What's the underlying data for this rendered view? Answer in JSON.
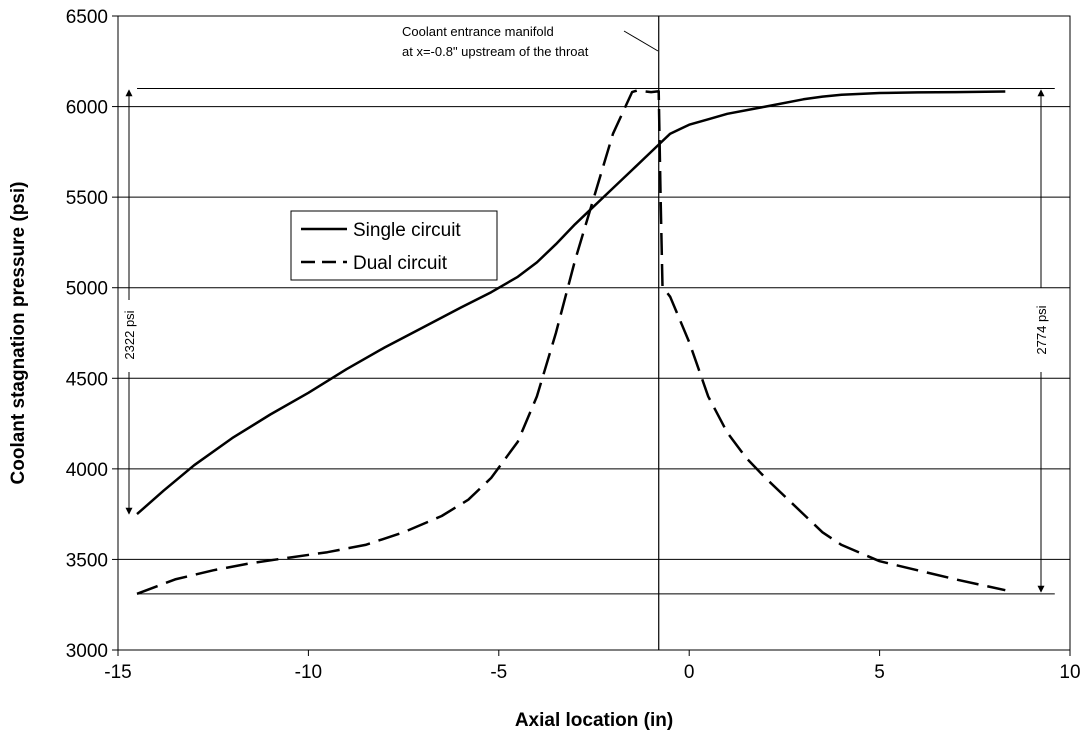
{
  "chart_data": {
    "type": "line",
    "xlabel": "Axial location (in)",
    "ylabel": "Coolant stagnation pressure (psi)",
    "xlim": [
      -15,
      10
    ],
    "ylim": [
      3000,
      6500
    ],
    "x_ticks": [
      "-15",
      "-10",
      "-5",
      "0",
      "5",
      "10"
    ],
    "y_ticks": [
      "3000",
      "3500",
      "4000",
      "4500",
      "5000",
      "5500",
      "6000",
      "6500"
    ],
    "grid": "horizontal",
    "legend": {
      "placement": "center-left",
      "entries": [
        "Single circuit",
        "Dual circuit"
      ]
    },
    "series": [
      {
        "name": "Single circuit",
        "style": "solid",
        "x": [
          -14.5,
          -13.8,
          -13,
          -12,
          -11,
          -10,
          -9,
          -8,
          -7,
          -6,
          -5.2,
          -4.5,
          -4,
          -3.5,
          -3,
          -2.5,
          -2,
          -1.5,
          -1,
          -0.8,
          -0.5,
          0,
          0.5,
          1,
          2,
          3,
          3.5,
          4,
          5,
          6,
          7,
          8.3
        ],
        "y": [
          3750,
          3880,
          4020,
          4170,
          4300,
          4420,
          4550,
          4670,
          4780,
          4890,
          4975,
          5060,
          5140,
          5240,
          5350,
          5450,
          5550,
          5650,
          5750,
          5790,
          5850,
          5900,
          5930,
          5960,
          6000,
          6040,
          6055,
          6065,
          6075,
          6078,
          6080,
          6083
        ]
      },
      {
        "name": "Dual circuit",
        "style": "dashed",
        "x": [
          -14.5,
          -13.5,
          -12.5,
          -11.5,
          -10.5,
          -9.5,
          -8.5,
          -7.5,
          -6.5,
          -5.8,
          -5.2,
          -4.5,
          -4,
          -3.5,
          -3,
          -2.5,
          -2,
          -1.5,
          -1.35,
          -1.2,
          -1,
          -0.8,
          -0.75,
          -0.7,
          -0.5,
          0,
          0.5,
          1,
          1.5,
          2,
          2.5,
          3,
          3.5,
          4,
          5,
          6,
          7,
          8.3
        ],
        "y": [
          3310,
          3390,
          3440,
          3480,
          3510,
          3540,
          3580,
          3650,
          3740,
          3830,
          3950,
          4150,
          4400,
          4750,
          5150,
          5500,
          5850,
          6080,
          6090,
          6085,
          6080,
          6085,
          5500,
          5005,
          4950,
          4700,
          4400,
          4200,
          4060,
          3950,
          3850,
          3750,
          3650,
          3580,
          3490,
          3440,
          3390,
          3330
        ]
      }
    ],
    "reference_lines": {
      "top_y": 6100,
      "bottom_y": 3310,
      "vertical_x": -0.8
    },
    "annotations": {
      "manifold_note_line1": "Coolant entrance manifold",
      "manifold_note_line2": "at x=-0.8\" upstream of the throat",
      "left_dimension": "2322 psi",
      "right_dimension": "2774 psi"
    }
  }
}
